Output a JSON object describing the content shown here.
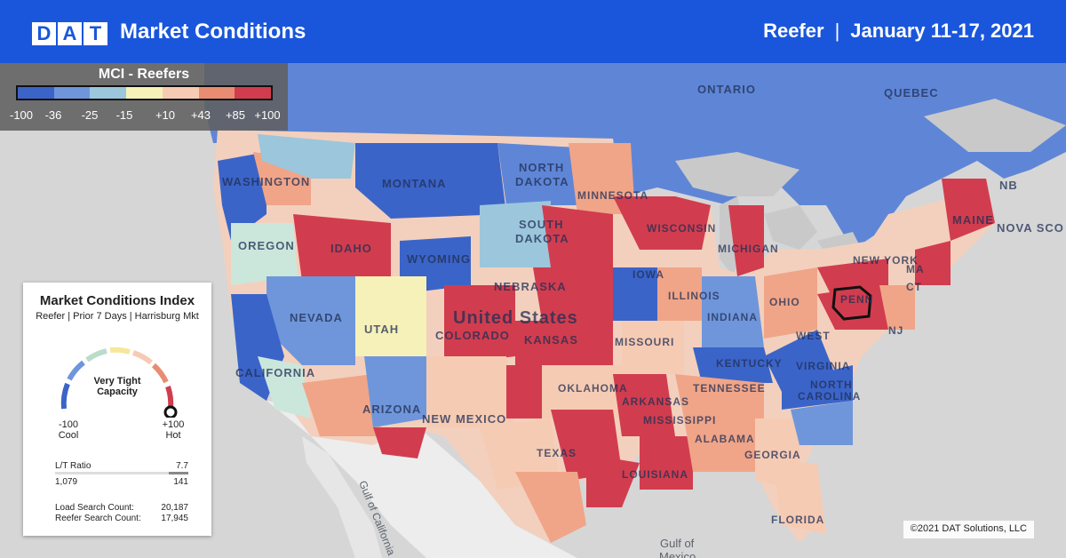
{
  "header": {
    "logo_letters": [
      "D",
      "A",
      "T"
    ],
    "title": "Market Conditions",
    "equipment": "Reefer",
    "separator": "|",
    "date_range": "January 11-17, 2021"
  },
  "legend": {
    "title": "MCI - Reefers",
    "colors": [
      "#3b64c8",
      "#6f96da",
      "#9cc6dc",
      "#f6f1b8",
      "#f6cbb3",
      "#e88d72",
      "#d13d4e"
    ],
    "ticks": [
      "-100",
      "-36",
      "-25",
      "-15",
      "+10",
      "+43",
      "+85",
      "+100"
    ]
  },
  "card": {
    "title": "Market Conditions Index",
    "subtitle": "Reefer | Prior 7 Days | Harrisburg Mkt",
    "gauge_label_line1": "Very Tight",
    "gauge_label_line2": "Capacity",
    "gauge_value_fraction": 1.0,
    "min_value": "-100",
    "min_label": "Cool",
    "max_value": "+100",
    "max_label": "Hot",
    "lt_ratio_label": "L/T Ratio",
    "lt_ratio_value": "7.7",
    "loads": "1,079",
    "trucks": "141",
    "load_search_label": "Load Search Count:",
    "load_search_value": "20,187",
    "reefer_search_label": "Reefer Search Count:",
    "reefer_search_value": "17,945"
  },
  "map_labels": {
    "ontario": "ONTARIO",
    "quebec": "QUEBEC",
    "nb": "NB",
    "nova_scotia": "NOVA SCO",
    "washington": "WASHINGTON",
    "oregon": "OREGON",
    "idaho": "IDAHO",
    "montana": "MONTANA",
    "wyoming": "WYOMING",
    "north_dakota_1": "NORTH",
    "north_dakota_2": "DAKOTA",
    "south_dakota_1": "SOUTH",
    "south_dakota_2": "DAKOTA",
    "minnesota": "MINNESOTA",
    "wisconsin": "WISCONSIN",
    "michigan": "MICHIGAN",
    "maine": "MAINE",
    "new_york": "NEW YORK",
    "nebraska": "NEBRASKA",
    "iowa": "IOWA",
    "illinois": "ILLINOIS",
    "indiana": "INDIANA",
    "ohio": "OHIO",
    "penn": "PENN",
    "nj": "NJ",
    "ma": "MA",
    "ct": "CT",
    "nevada": "NEVADA",
    "utah": "UTAH",
    "colorado": "COLORADO",
    "kansas": "KANSAS",
    "missouri": "MISSOURI",
    "west_virginia": "WEST",
    "virginia": "VIRGINIA",
    "kentucky": "KENTUCKY",
    "california": "CALIFORNIA",
    "arizona": "ARIZONA",
    "new_mexico": "NEW MEXICO",
    "oklahoma": "OKLAHOMA",
    "arkansas": "ARKANSAS",
    "tennessee": "TENNESSEE",
    "north_carolina": "NORTH",
    "carolina": "CAROLINA",
    "texas": "TEXAS",
    "mississippi": "MISSISSIPPI",
    "alabama": "ALABAMA",
    "georgia": "GEORGIA",
    "louisiana": "LOUISIANA",
    "florida": "FLORIDA",
    "country": "United States",
    "gulf_of_mexico_1": "Gulf of",
    "gulf_of_mexico_2": "Mexico",
    "gulf_of_california": "Gulf of California"
  },
  "copyright": "©2021 DAT Solutions, LLC"
}
